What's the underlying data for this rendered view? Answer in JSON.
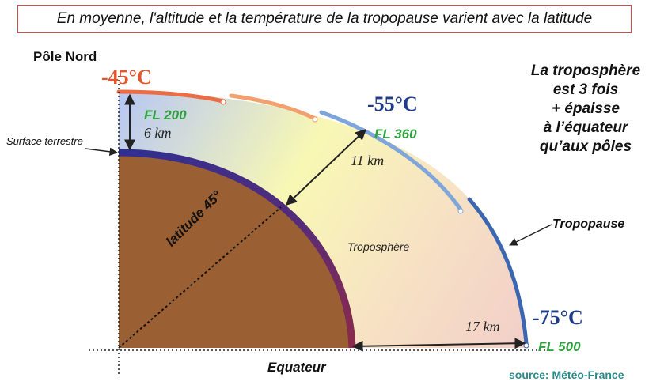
{
  "title": "En moyenne, l'altitude et la température de la tropopause varient avec la latitude",
  "labels": {
    "pole_nord": "Pôle Nord",
    "surface": "Surface terrestre",
    "equateur": "Equateur",
    "latitude": "latitude 45°",
    "troposphere": "Troposphère",
    "tropopause": "Tropopause",
    "source": "source: Météo-France"
  },
  "temperatures": {
    "pole": "-45°C",
    "mid": "-55°C",
    "equator": "-75°C"
  },
  "flight_levels": {
    "pole": "FL 200",
    "mid": "FL 360",
    "equator": "FL 500"
  },
  "thickness": {
    "pole": "6 km",
    "mid": "11 km",
    "equator": "17 km"
  },
  "note": {
    "line1": "La troposphère",
    "line2": "est 3 fois",
    "line3": "+ épaisse",
    "line4": "à l’équateur",
    "line5": "qu’aux pôles"
  },
  "colors": {
    "title_border": "#d24a4a",
    "earth": "#9a5f32",
    "surface_band": "#3b2f8a",
    "tropopause_warm": "#f08a5d",
    "tropopause_cool": "#3a67b0",
    "flight_level": "#2fa13a",
    "source": "#2a8a8a"
  }
}
